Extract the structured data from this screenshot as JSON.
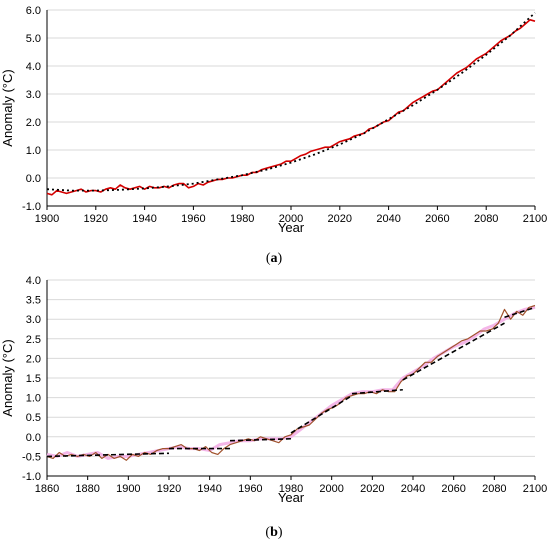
{
  "panels": [
    {
      "label_open": "(",
      "label_letter": "a",
      "label_close": ")"
    },
    {
      "label_open": "(",
      "label_letter": "b",
      "label_close": ")"
    }
  ],
  "colors": {
    "series_red": "#d40000",
    "series_brown": "#a0522d",
    "series_pink": "#f4b6e8",
    "trend": "#000000",
    "grid": "#d9d9d9",
    "axis": "#000000"
  },
  "chart_data": [
    {
      "type": "line",
      "title": "",
      "xlabel": "Year",
      "ylabel": "Anomaly (°C)",
      "xlim": [
        1900,
        2100
      ],
      "ylim": [
        -1.0,
        6.0
      ],
      "xticks": [
        "1900",
        "1920",
        "1940",
        "1960",
        "1980",
        "2000",
        "2020",
        "2040",
        "2060",
        "2080",
        "2100"
      ],
      "yticks": [
        "-1.0",
        "0.0",
        "1.0",
        "2.0",
        "3.0",
        "4.0",
        "5.0",
        "6.0"
      ],
      "grid": "horizontal",
      "series": [
        {
          "style": "solid-red",
          "x": [
            1900,
            1902,
            1904,
            1906,
            1908,
            1910,
            1912,
            1914,
            1916,
            1918,
            1920,
            1922,
            1924,
            1926,
            1928,
            1930,
            1932,
            1934,
            1936,
            1938,
            1940,
            1942,
            1944,
            1946,
            1948,
            1950,
            1952,
            1954,
            1956,
            1958,
            1960,
            1962,
            1964,
            1966,
            1968,
            1970,
            1972,
            1974,
            1976,
            1978,
            1980,
            1982,
            1984,
            1986,
            1988,
            1990,
            1992,
            1994,
            1996,
            1998,
            2000,
            2002,
            2004,
            2006,
            2008,
            2010,
            2012,
            2014,
            2016,
            2018,
            2020,
            2022,
            2024,
            2026,
            2028,
            2030,
            2032,
            2034,
            2036,
            2038,
            2040,
            2042,
            2044,
            2046,
            2048,
            2050,
            2052,
            2054,
            2056,
            2058,
            2060,
            2062,
            2064,
            2066,
            2068,
            2070,
            2072,
            2074,
            2076,
            2078,
            2080,
            2082,
            2084,
            2086,
            2088,
            2090,
            2092,
            2094,
            2096,
            2098,
            2100
          ],
          "y": [
            -0.55,
            -0.6,
            -0.45,
            -0.5,
            -0.55,
            -0.5,
            -0.45,
            -0.4,
            -0.5,
            -0.45,
            -0.45,
            -0.5,
            -0.4,
            -0.35,
            -0.4,
            -0.25,
            -0.35,
            -0.4,
            -0.35,
            -0.3,
            -0.4,
            -0.3,
            -0.35,
            -0.35,
            -0.3,
            -0.35,
            -0.25,
            -0.2,
            -0.2,
            -0.35,
            -0.3,
            -0.2,
            -0.25,
            -0.15,
            -0.1,
            -0.05,
            -0.05,
            0.0,
            0.0,
            0.05,
            0.1,
            0.1,
            0.2,
            0.2,
            0.3,
            0.35,
            0.4,
            0.45,
            0.5,
            0.6,
            0.6,
            0.7,
            0.8,
            0.85,
            0.95,
            1.0,
            1.05,
            1.1,
            1.1,
            1.2,
            1.3,
            1.35,
            1.4,
            1.5,
            1.55,
            1.6,
            1.75,
            1.8,
            1.9,
            2.0,
            2.05,
            2.2,
            2.35,
            2.4,
            2.55,
            2.7,
            2.8,
            2.9,
            3.0,
            3.1,
            3.15,
            3.3,
            3.45,
            3.6,
            3.75,
            3.85,
            3.95,
            4.1,
            4.25,
            4.35,
            4.45,
            4.6,
            4.75,
            4.9,
            5.0,
            5.1,
            5.25,
            5.35,
            5.5,
            5.65,
            5.6
          ]
        },
        {
          "style": "dotted-trend",
          "x": [
            1900,
            1910,
            1920,
            1930,
            1940,
            1950,
            1960,
            1970,
            1980,
            1990,
            2000,
            2010,
            2020,
            2030,
            2040,
            2050,
            2060,
            2070,
            2080,
            2090,
            2100
          ],
          "y": [
            -0.4,
            -0.45,
            -0.45,
            -0.42,
            -0.37,
            -0.3,
            -0.2,
            -0.05,
            0.1,
            0.3,
            0.55,
            0.85,
            1.2,
            1.6,
            2.1,
            2.6,
            3.15,
            3.75,
            4.4,
            5.1,
            5.9
          ]
        }
      ]
    },
    {
      "type": "line",
      "title": "",
      "xlabel": "Year",
      "ylabel": "Anomaly (°C)",
      "xlim": [
        1860,
        2100
      ],
      "ylim": [
        -1.0,
        4.0
      ],
      "xticks": [
        "1860",
        "1880",
        "1900",
        "1920",
        "1940",
        "1960",
        "1980",
        "2000",
        "2020",
        "2040",
        "2060",
        "2080",
        "2100"
      ],
      "yticks": [
        "-1.0",
        "-0.5",
        "0.0",
        "0.5",
        "1.0",
        "1.5",
        "2.0",
        "2.5",
        "3.0",
        "3.5",
        "4.0"
      ],
      "grid": "horizontal",
      "series": [
        {
          "style": "solid-pink",
          "x": [
            1860,
            1865,
            1870,
            1875,
            1880,
            1885,
            1890,
            1895,
            1900,
            1905,
            1910,
            1915,
            1920,
            1925,
            1930,
            1935,
            1940,
            1945,
            1950,
            1955,
            1960,
            1965,
            1970,
            1975,
            1980,
            1985,
            1990,
            1995,
            2000,
            2005,
            2010,
            2015,
            2020,
            2025,
            2030,
            2035,
            2040,
            2045,
            2050,
            2055,
            2060,
            2065,
            2070,
            2075,
            2080,
            2085,
            2090,
            2095,
            2100
          ],
          "y": [
            -0.45,
            -0.5,
            -0.4,
            -0.5,
            -0.45,
            -0.4,
            -0.55,
            -0.5,
            -0.5,
            -0.45,
            -0.4,
            -0.35,
            -0.3,
            -0.25,
            -0.3,
            -0.3,
            -0.35,
            -0.2,
            -0.15,
            -0.1,
            -0.1,
            -0.05,
            -0.05,
            -0.05,
            0.0,
            0.2,
            0.4,
            0.6,
            0.8,
            0.95,
            1.1,
            1.15,
            1.15,
            1.2,
            1.2,
            1.5,
            1.65,
            1.8,
            2.0,
            2.15,
            2.3,
            2.4,
            2.55,
            2.75,
            2.85,
            3.0,
            3.15,
            3.25,
            3.3
          ]
        },
        {
          "style": "solid-brown",
          "x": [
            1860,
            1863,
            1866,
            1869,
            1872,
            1875,
            1878,
            1881,
            1884,
            1887,
            1890,
            1893,
            1896,
            1899,
            1902,
            1905,
            1908,
            1911,
            1914,
            1917,
            1920,
            1923,
            1926,
            1929,
            1932,
            1935,
            1938,
            1941,
            1944,
            1947,
            1950,
            1953,
            1956,
            1959,
            1962,
            1965,
            1968,
            1971,
            1974,
            1977,
            1980,
            1983,
            1986,
            1989,
            1992,
            1995,
            1998,
            2001,
            2004,
            2007,
            2010,
            2013,
            2016,
            2019,
            2022,
            2025,
            2028,
            2031,
            2034,
            2037,
            2040,
            2043,
            2046,
            2049,
            2052,
            2055,
            2058,
            2061,
            2064,
            2067,
            2070,
            2073,
            2076,
            2079,
            2082,
            2085,
            2088,
            2091,
            2094,
            2097,
            2100
          ],
          "y": [
            -0.5,
            -0.55,
            -0.4,
            -0.5,
            -0.45,
            -0.5,
            -0.45,
            -0.5,
            -0.4,
            -0.55,
            -0.45,
            -0.55,
            -0.5,
            -0.6,
            -0.45,
            -0.5,
            -0.4,
            -0.45,
            -0.35,
            -0.3,
            -0.3,
            -0.25,
            -0.2,
            -0.3,
            -0.3,
            -0.35,
            -0.25,
            -0.4,
            -0.45,
            -0.3,
            -0.2,
            -0.15,
            -0.1,
            -0.05,
            -0.1,
            0.0,
            -0.05,
            -0.1,
            -0.15,
            0.0,
            0.05,
            0.2,
            0.25,
            0.3,
            0.45,
            0.6,
            0.7,
            0.75,
            0.85,
            1.0,
            1.05,
            1.1,
            1.1,
            1.15,
            1.1,
            1.2,
            1.15,
            1.15,
            1.4,
            1.55,
            1.6,
            1.75,
            1.9,
            1.9,
            2.05,
            2.15,
            2.25,
            2.35,
            2.45,
            2.5,
            2.6,
            2.7,
            2.7,
            2.75,
            2.9,
            3.25,
            3.0,
            3.2,
            3.1,
            3.3,
            3.35
          ]
        },
        {
          "style": "dashed-segments",
          "segments": [
            {
              "x": [
                1860,
                1920
              ],
              "y": [
                -0.5,
                -0.42
              ]
            },
            {
              "x": [
                1920,
                1950
              ],
              "y": [
                -0.3,
                -0.3
              ]
            },
            {
              "x": [
                1950,
                1980
              ],
              "y": [
                -0.1,
                -0.05
              ]
            },
            {
              "x": [
                1980,
                2010
              ],
              "y": [
                0.1,
                1.05
              ]
            },
            {
              "x": [
                2010,
                2035
              ],
              "y": [
                1.1,
                1.2
              ]
            },
            {
              "x": [
                2035,
                2085
              ],
              "y": [
                1.45,
                2.9
              ]
            },
            {
              "x": [
                2085,
                2100
              ],
              "y": [
                3.05,
                3.3
              ]
            }
          ]
        }
      ]
    }
  ]
}
